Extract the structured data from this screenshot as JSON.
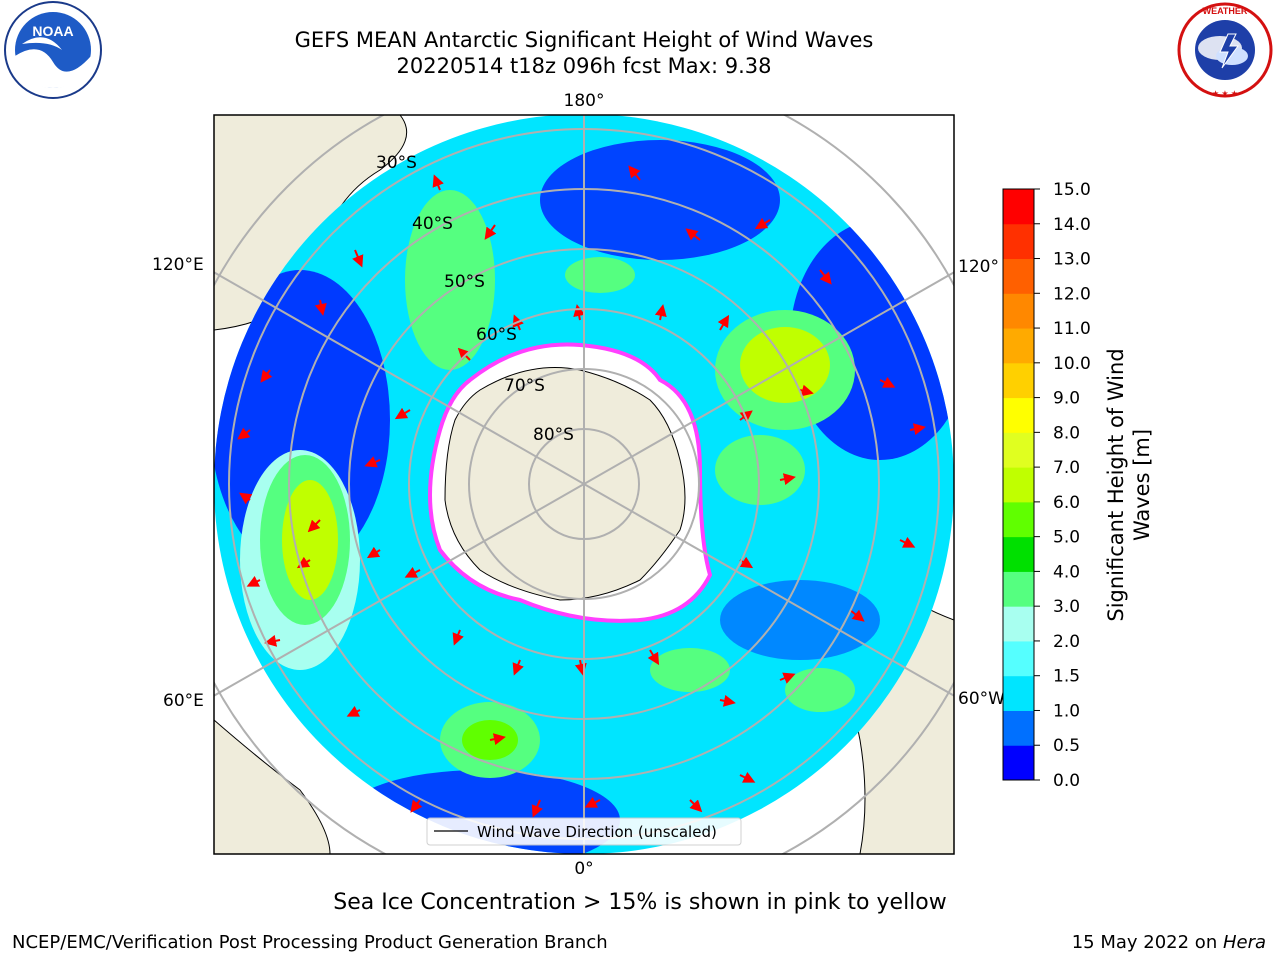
{
  "header": {
    "title_line1": "GEFS MEAN Antarctic Significant Height of Wind Waves",
    "title_line2": "20220514 t18z 096h fcst   Max: 9.38"
  },
  "logos": {
    "left": "NOAA",
    "right": "NATIONAL WEATHER SERVICE"
  },
  "map": {
    "longitude_labels": [
      "180°",
      "120°E",
      "120°",
      "60°E",
      "60°W",
      "0°"
    ],
    "latitude_labels": [
      "30°S",
      "40°S",
      "50°S",
      "60°S",
      "70°S",
      "80°S"
    ],
    "legend_label": "Wind Wave Direction (unscaled)"
  },
  "colorbar": {
    "label_line1": "Significant Height of Wind",
    "label_line2": "Waves [m]",
    "ticks": [
      "0.0",
      "0.5",
      "1.0",
      "1.5",
      "2.0",
      "3.0",
      "4.0",
      "5.0",
      "6.0",
      "7.0",
      "8.0",
      "9.0",
      "10.0",
      "11.0",
      "12.0",
      "13.0",
      "14.0",
      "15.0"
    ],
    "colors": [
      "#0000ff",
      "#0070ff",
      "#00e5ff",
      "#55ffff",
      "#a8fff0",
      "#55ff80",
      "#00e000",
      "#60ff00",
      "#c0ff00",
      "#e0ff20",
      "#ffff00",
      "#ffd000",
      "#ffaa00",
      "#ff8800",
      "#ff6000",
      "#ff3000",
      "#ff0000"
    ]
  },
  "footer": {
    "sea_ice_note": "Sea Ice Concentration > 15% is shown in pink to yellow",
    "credit": "NCEP/EMC/Verification Post Processing Product Generation Branch",
    "date_prefix": "15 May 2022 on ",
    "date_machine": "Hera"
  }
}
